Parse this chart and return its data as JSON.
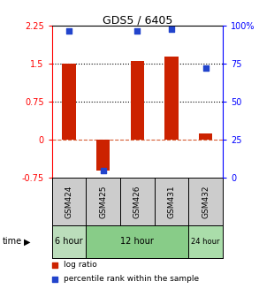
{
  "title": "GDS5 / 6405",
  "samples": [
    "GSM424",
    "GSM425",
    "GSM426",
    "GSM431",
    "GSM432"
  ],
  "log_ratio": [
    1.5,
    -0.6,
    1.55,
    1.65,
    0.12
  ],
  "percentile_rank": [
    97,
    5,
    97,
    98,
    72
  ],
  "ylim_left": [
    -0.75,
    2.25
  ],
  "ylim_right": [
    0,
    100
  ],
  "yticks_left": [
    -0.75,
    0,
    0.75,
    1.5,
    2.25
  ],
  "yticks_right": [
    0,
    25,
    50,
    75,
    100
  ],
  "hlines_dotted": [
    0.75,
    1.5
  ],
  "hline_dashed_color": "#cc3300",
  "bar_color": "#cc2200",
  "dot_color": "#2244cc",
  "time_groups": [
    {
      "label": "6 hour",
      "samples": [
        0
      ],
      "color": "#bbddbb"
    },
    {
      "label": "12 hour",
      "samples": [
        1,
        2,
        3
      ],
      "color": "#88cc88"
    },
    {
      "label": "24 hour",
      "samples": [
        4
      ],
      "color": "#aaddaa"
    }
  ],
  "sample_box_color": "#cccccc",
  "legend_items": [
    {
      "label": "log ratio",
      "color": "#cc2200"
    },
    {
      "label": "percentile rank within the sample",
      "color": "#2244cc"
    }
  ],
  "bar_width": 0.4
}
